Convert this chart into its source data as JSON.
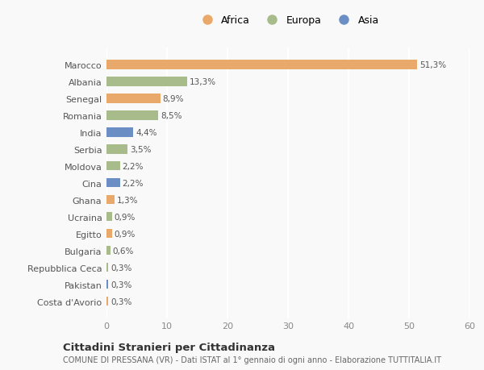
{
  "countries": [
    "Marocco",
    "Albania",
    "Senegal",
    "Romania",
    "India",
    "Serbia",
    "Moldova",
    "Cina",
    "Ghana",
    "Ucraina",
    "Egitto",
    "Bulgaria",
    "Repubblica Ceca",
    "Pakistan",
    "Costa d'Avorio"
  ],
  "values": [
    51.3,
    13.3,
    8.9,
    8.5,
    4.4,
    3.5,
    2.2,
    2.2,
    1.3,
    0.9,
    0.9,
    0.6,
    0.3,
    0.3,
    0.3
  ],
  "labels": [
    "51,3%",
    "13,3%",
    "8,9%",
    "8,5%",
    "4,4%",
    "3,5%",
    "2,2%",
    "2,2%",
    "1,3%",
    "0,9%",
    "0,9%",
    "0,6%",
    "0,3%",
    "0,3%",
    "0,3%"
  ],
  "continents": [
    "Africa",
    "Europa",
    "Africa",
    "Europa",
    "Asia",
    "Europa",
    "Europa",
    "Asia",
    "Africa",
    "Europa",
    "Africa",
    "Europa",
    "Europa",
    "Asia",
    "Africa"
  ],
  "colors": {
    "Africa": "#E8A96A",
    "Europa": "#A8BB8A",
    "Asia": "#6B8FC4"
  },
  "xlim": [
    0,
    60
  ],
  "xticks": [
    0,
    10,
    20,
    30,
    40,
    50,
    60
  ],
  "title": "Cittadini Stranieri per Cittadinanza",
  "subtitle": "COMUNE DI PRESSANA (VR) - Dati ISTAT al 1° gennaio di ogni anno - Elaborazione TUTTITALIA.IT",
  "background_color": "#f9f9f9",
  "grid_color": "#ffffff",
  "bar_height": 0.55
}
